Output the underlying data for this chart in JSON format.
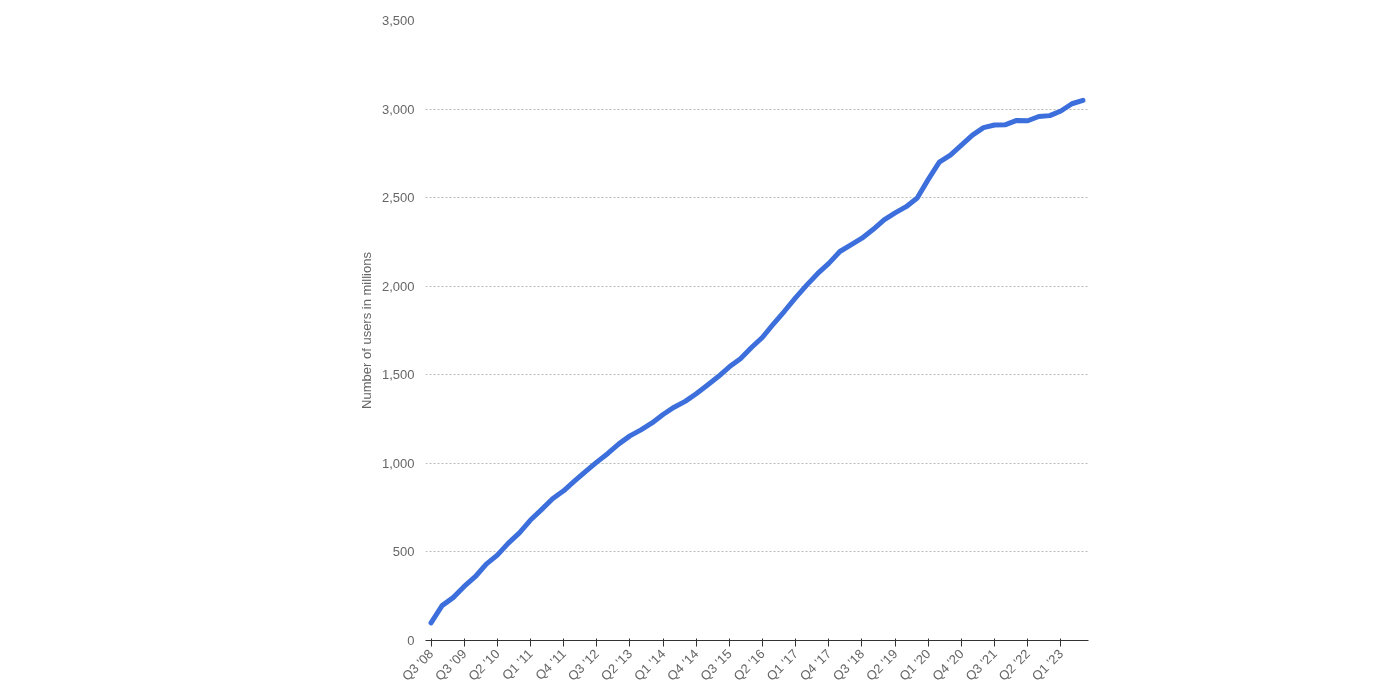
{
  "chart_data": {
    "type": "line",
    "ylabel": "Number of users in millions",
    "categories": [
      "Q3 '08",
      null,
      null,
      "Q3 '09",
      null,
      null,
      "Q2 '10",
      null,
      null,
      "Q1 '11",
      null,
      null,
      "Q4 '11",
      null,
      null,
      "Q3 '12",
      null,
      null,
      "Q2 '13",
      null,
      null,
      "Q1 '14",
      null,
      null,
      "Q4 '14",
      null,
      null,
      "Q3 '15",
      null,
      null,
      "Q2 '16",
      null,
      null,
      "Q1 '17",
      null,
      null,
      "Q4 '17",
      null,
      null,
      "Q3 '18",
      null,
      null,
      "Q2 '19",
      null,
      null,
      "Q1 '20",
      null,
      null,
      "Q4 '20",
      null,
      null,
      "Q3 '21",
      null,
      null,
      "Q2 '22",
      null,
      null,
      "Q1 '23",
      null,
      null
    ],
    "series": [
      {
        "color": "#3c6fdc",
        "values": [
          100,
          197,
          242,
          305,
          360,
          431,
          482,
          550,
          608,
          680,
          739,
          800,
          845,
          901,
          955,
          1007,
          1056,
          1110,
          1155,
          1189,
          1228,
          1276,
          1317,
          1350,
          1393,
          1441,
          1490,
          1545,
          1591,
          1654,
          1712,
          1788,
          1860,
          1936,
          2006,
          2072,
          2129,
          2196,
          2234,
          2271,
          2320,
          2375,
          2414,
          2449,
          2498,
          2603,
          2701,
          2740,
          2797,
          2853,
          2895,
          2910,
          2912,
          2936,
          2934,
          2958,
          2963,
          2989,
          3030,
          3049
        ]
      }
    ],
    "ylim": [
      0,
      3500
    ],
    "yticks": [
      0,
      {
        "value": 500,
        "label": "500"
      },
      {
        "value": 1000,
        "label": "1,000"
      },
      {
        "value": 1500,
        "label": "1,500"
      },
      {
        "value": 2000,
        "label": "2,000"
      },
      {
        "value": 2500,
        "label": "2,500"
      },
      {
        "value": 3000,
        "label": "3,000"
      },
      {
        "value": 3500,
        "label": "3,500"
      }
    ],
    "grid": "y",
    "line_style": "solid",
    "marker": "none"
  }
}
